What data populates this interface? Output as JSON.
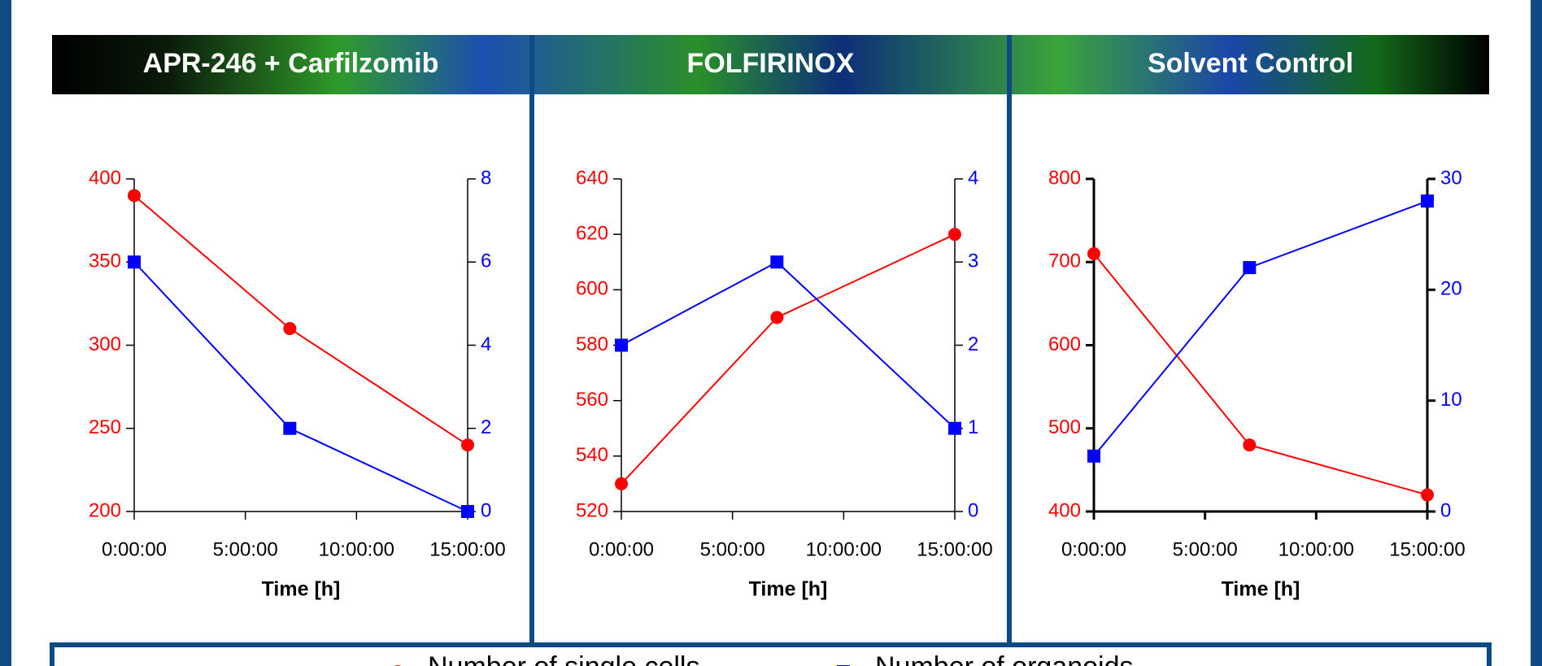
{
  "chart_data": [
    {
      "type": "line",
      "title": "APR-246 + Carfilzomib",
      "xlabel": "Time [h]",
      "x": [
        0,
        7,
        15
      ],
      "xlim": [
        0,
        15
      ],
      "xticks": [
        {
          "value": 0,
          "label": "0:00:00"
        },
        {
          "value": 5,
          "label": "5:00:00"
        },
        {
          "value": 10,
          "label": "10:00:00"
        },
        {
          "value": 15,
          "label": "15:00:00"
        }
      ],
      "ylim": [
        200,
        400
      ],
      "yticks": [
        200,
        250,
        300,
        350,
        400
      ],
      "y2lim": [
        0,
        8
      ],
      "y2ticks": [
        0,
        2,
        4,
        6,
        8
      ],
      "series": [
        {
          "name": "Number of single cells",
          "color": "#ff0000",
          "values": [
            390,
            310,
            240
          ]
        },
        {
          "name": "Number of organoids",
          "color": "#0000ff",
          "axis": "y2",
          "values": [
            6,
            2,
            0
          ]
        }
      ]
    },
    {
      "type": "line",
      "title": "FOLFIRINOX",
      "xlabel": "Time [h]",
      "x": [
        0,
        7,
        15
      ],
      "xlim": [
        0,
        15
      ],
      "xticks": [
        {
          "value": 0,
          "label": "0:00:00"
        },
        {
          "value": 5,
          "label": "5:00:00"
        },
        {
          "value": 10,
          "label": "10:00:00"
        },
        {
          "value": 15,
          "label": "15:00:00"
        }
      ],
      "ylim": [
        520,
        640
      ],
      "yticks": [
        520,
        540,
        560,
        580,
        600,
        620,
        640
      ],
      "y2lim": [
        0,
        4
      ],
      "y2ticks": [
        0,
        1,
        2,
        3,
        4
      ],
      "series": [
        {
          "color": "#ff0000",
          "values": [
            530,
            590,
            620
          ]
        },
        {
          "color": "#0000ff",
          "axis": "y2",
          "values": [
            2,
            3,
            1
          ]
        }
      ]
    },
    {
      "type": "line",
      "title": "Solvent Control",
      "xlabel": "Time [h]",
      "x": [
        0,
        7,
        15
      ],
      "xlim": [
        0,
        15
      ],
      "xticks": [
        {
          "value": 0,
          "label": "0:00:00"
        },
        {
          "value": 5,
          "label": "5:00:00"
        },
        {
          "value": 10,
          "label": "10:00:00"
        },
        {
          "value": 15,
          "label": "15:00:00"
        }
      ],
      "ylim": [
        400,
        800
      ],
      "yticks": [
        400,
        500,
        600,
        700,
        800
      ],
      "y2lim": [
        0,
        30
      ],
      "y2ticks": [
        0,
        10,
        20,
        30
      ],
      "series": [
        {
          "color": "#ff0000",
          "values": [
            710,
            480,
            420
          ]
        },
        {
          "color": "#0000ff",
          "axis": "y2",
          "values": [
            5,
            22,
            28
          ]
        }
      ]
    }
  ]
}
